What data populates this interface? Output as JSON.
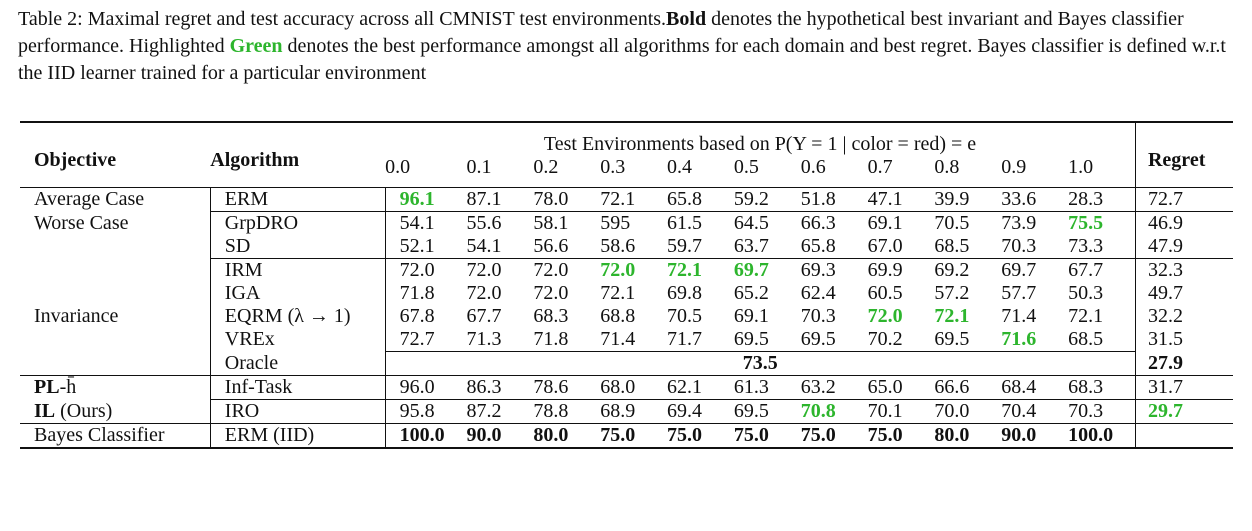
{
  "caption": {
    "prefix": "Table 2: Maximal regret and test accuracy across all CMNIST test environments.",
    "bold_word": "Bold",
    "part2": " denotes the hypothetical best invariant and Bayes classifier performance. Highlighted ",
    "green_word": "Green",
    "part3": " denotes the best performance amongst all algorithms for each domain and best regret. Bayes classifier is defined w.r.t the IID learner trained for a particular environment"
  },
  "header": {
    "objective": "Objective",
    "algorithm": "Algorithm",
    "test_env": "Test Environments based on P(Y = 1 | color = red) = e",
    "regret": "Regret",
    "envs": [
      "0.0",
      "0.1",
      "0.2",
      "0.3",
      "0.4",
      "0.5",
      "0.6",
      "0.7",
      "0.8",
      "0.9",
      "1.0"
    ]
  },
  "rows": [
    {
      "objective": "Average Case",
      "algorithm": "ERM",
      "values": [
        "96.1",
        "87.1",
        "78.0",
        "72.1",
        "65.8",
        "59.2",
        "51.8",
        "47.1",
        "39.9",
        "33.6",
        "28.3"
      ],
      "regret": "72.7",
      "green": [
        0
      ]
    },
    {
      "objective": "Worse Case",
      "algorithm": "GrpDRO",
      "values": [
        "54.1",
        "55.6",
        "58.1",
        "595",
        "61.5",
        "64.5",
        "66.3",
        "69.1",
        "70.5",
        "73.9",
        "75.5"
      ],
      "regret": "46.9",
      "green": [
        10
      ]
    },
    {
      "objective": "",
      "algorithm": "SD",
      "values": [
        "52.1",
        "54.1",
        "56.6",
        "58.6",
        "59.7",
        "63.7",
        "65.8",
        "67.0",
        "68.5",
        "70.3",
        "73.3"
      ],
      "regret": "47.9"
    },
    {
      "objective": "",
      "algorithm": "IRM",
      "values": [
        "72.0",
        "72.0",
        "72.0",
        "72.0",
        "72.1",
        "69.7",
        "69.3",
        "69.9",
        "69.2",
        "69.7",
        "67.7"
      ],
      "regret": "32.3",
      "green": [
        3,
        4,
        5
      ]
    },
    {
      "objective": "",
      "algorithm": "IGA",
      "values": [
        "71.8",
        "72.0",
        "72.0",
        "72.1",
        "69.8",
        "65.2",
        "62.4",
        "60.5",
        "57.2",
        "57.7",
        "50.3"
      ],
      "regret": "49.7"
    },
    {
      "objective": "Invariance",
      "algorithm": "EQRM (λ → 1)",
      "values": [
        "67.8",
        "67.7",
        "68.3",
        "68.8",
        "70.5",
        "69.1",
        "70.3",
        "72.0",
        "72.1",
        "71.4",
        "72.1"
      ],
      "regret": "32.2",
      "green": [
        7,
        8
      ]
    },
    {
      "objective": "",
      "algorithm": "VREx",
      "values": [
        "72.7",
        "71.3",
        "71.8",
        "71.4",
        "71.7",
        "69.5",
        "69.5",
        "70.2",
        "69.5",
        "71.6",
        "68.5"
      ],
      "regret": "31.5",
      "green": [
        9
      ]
    },
    {
      "objective": "",
      "algorithm": "Oracle",
      "oracle": "73.5",
      "regret": "27.9"
    },
    {
      "objective_bold": "PL",
      "objective_rest": "-h̄",
      "algorithm": "Inf-Task",
      "values": [
        "96.0",
        "86.3",
        "78.6",
        "68.0",
        "62.1",
        "61.3",
        "63.2",
        "65.0",
        "66.6",
        "68.4",
        "68.3"
      ],
      "regret": "31.7"
    },
    {
      "objective_bold": "IL",
      "objective_rest": " (Ours)",
      "algorithm": "IRO",
      "values": [
        "95.8",
        "87.2",
        "78.8",
        "68.9",
        "69.4",
        "69.5",
        "70.8",
        "70.1",
        "70.0",
        "70.4",
        "70.3"
      ],
      "regret": "29.7",
      "green": [
        6
      ],
      "regret_green": true
    },
    {
      "objective": "Bayes Classifier",
      "algorithm": "ERM (IID)",
      "values": [
        "100.0",
        "90.0",
        "80.0",
        "75.0",
        "75.0",
        "75.0",
        "75.0",
        "75.0",
        "80.0",
        "90.0",
        "100.0"
      ],
      "regret": "",
      "all_bold": true
    }
  ]
}
